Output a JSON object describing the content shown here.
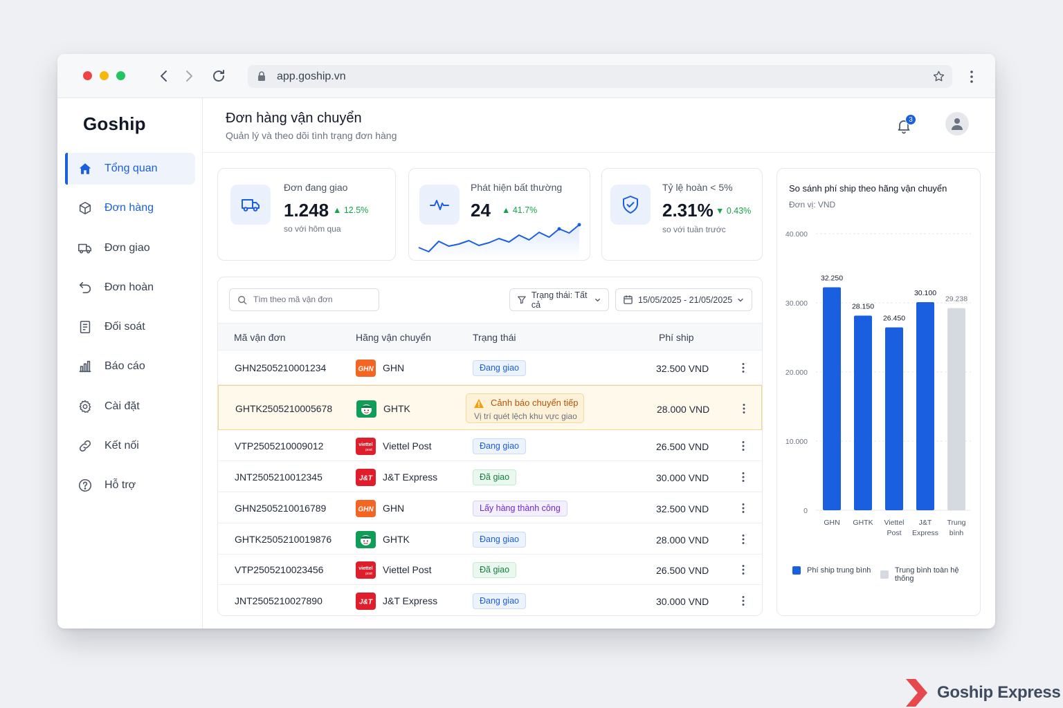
{
  "browser": {
    "url": "app.goship.vn"
  },
  "sidebar": {
    "brand": "Goship",
    "items": [
      {
        "label": "Tổng quan",
        "icon": "home-icon",
        "active": true
      },
      {
        "label": "Đơn hàng",
        "icon": "box-icon"
      },
      {
        "label": "Đơn giao",
        "icon": "truck-icon"
      },
      {
        "label": "Đơn hoàn",
        "icon": "return-icon"
      },
      {
        "label": "Đối soát",
        "icon": "document-icon"
      },
      {
        "label": "Báo cáo",
        "icon": "bar-chart-icon"
      },
      {
        "label": "Cài đặt",
        "icon": "gear-icon"
      },
      {
        "label": "Kết nối",
        "icon": "link-icon"
      },
      {
        "label": "Hỗ trợ",
        "icon": "help-icon"
      }
    ]
  },
  "header": {
    "title": "Đơn hàng vận chuyển",
    "subtitle": "Quản lý và theo dõi tình trạng đơn hàng",
    "notification_count": "3"
  },
  "stats": [
    {
      "label": "Đơn đang giao",
      "value": "1.248",
      "delta": "▲ 12.5%",
      "note": "so với hôm qua"
    },
    {
      "label": "Phát hiện bất thường",
      "value": "24",
      "delta": "▲ 41.7%",
      "sparkline": [
        36,
        42,
        27,
        34,
        31,
        26,
        33,
        29,
        23,
        28,
        18,
        25,
        14,
        21,
        9,
        15,
        3
      ]
    },
    {
      "label": "Tỷ lệ hoàn < 5%",
      "value": "2.31%",
      "delta": "▼ 0.43%",
      "note": "so với tuần trước"
    }
  ],
  "table": {
    "search_placeholder": "Tìm theo mã vận đơn",
    "status_filter": "Trạng thái: Tất cả",
    "date_filter": "15/05/2025 - 21/05/2025",
    "columns": [
      "Mã vận đơn",
      "Hãng vận chuyển",
      "Trạng thái",
      "Phí ship"
    ],
    "rows": [
      {
        "id": "GHN2505210001234",
        "carrier": "GHN",
        "logo": "ghn",
        "status": "Đang giao",
        "tone": "blue",
        "fee": "32.500 VND"
      },
      {
        "id": "GHTK2505210005678",
        "carrier": "GHTK",
        "logo": "ghtk",
        "warning": true,
        "warn_title": "Cảnh báo chuyển tiếp",
        "warn_detail": "Vị trí quét lệch khu vực giao",
        "fee": "28.000 VND"
      },
      {
        "id": "VTP2505210009012",
        "carrier": "Viettel Post",
        "logo": "vtp",
        "status": "Đang giao",
        "tone": "blue",
        "fee": "26.500 VND"
      },
      {
        "id": "JNT2505210012345",
        "carrier": "J&T Express",
        "logo": "jnt",
        "status": "Đã giao",
        "tone": "green",
        "fee": "30.000 VND"
      },
      {
        "id": "GHN2505210016789",
        "carrier": "GHN",
        "logo": "ghn",
        "status": "Lấy hàng thành công",
        "tone": "purple",
        "fee": "32.500 VND"
      },
      {
        "id": "GHTK2505210019876",
        "carrier": "GHTK",
        "logo": "ghtk",
        "status": "Đang giao",
        "tone": "blue",
        "fee": "28.000 VND"
      },
      {
        "id": "VTP2505210023456",
        "carrier": "Viettel Post",
        "logo": "vtp",
        "status": "Đã giao",
        "tone": "green",
        "fee": "26.500 VND"
      },
      {
        "id": "JNT2505210027890",
        "carrier": "J&T Express",
        "logo": "jnt",
        "status": "Đang giao",
        "tone": "blue",
        "fee": "30.000 VND"
      }
    ]
  },
  "logo_text": {
    "ghn": "GHN",
    "vtp": "viettel",
    "vtp_sub": "post",
    "jnt": "J&T"
  },
  "chart_data": {
    "type": "bar",
    "title": "So sánh phí ship theo hãng vận chuyển",
    "subtitle": "Đơn vị: VND",
    "categories": [
      [
        "GHN"
      ],
      [
        "GHTK"
      ],
      [
        "Viettel",
        "Post"
      ],
      [
        "J&T",
        "Express"
      ],
      [
        "Trung",
        "bình"
      ]
    ],
    "values": [
      32250,
      28150,
      26450,
      30100,
      29238
    ],
    "value_labels": [
      "32.250",
      "28.150",
      "26.450",
      "30.100",
      "29.238"
    ],
    "ylim": [
      0,
      40000
    ],
    "yticks": [
      0,
      10000,
      20000,
      30000,
      40000
    ],
    "ytick_labels": [
      "0",
      "10.000",
      "20.000",
      "30.000",
      "40.000"
    ],
    "grid": true,
    "legend_position": "bottom",
    "legend": [
      "Phí ship trung bình",
      "Trung bình toàn hệ thống"
    ],
    "colors": [
      "#1a5fe0",
      "#d5d9e0"
    ]
  },
  "watermark": {
    "text": "Goship Express"
  }
}
